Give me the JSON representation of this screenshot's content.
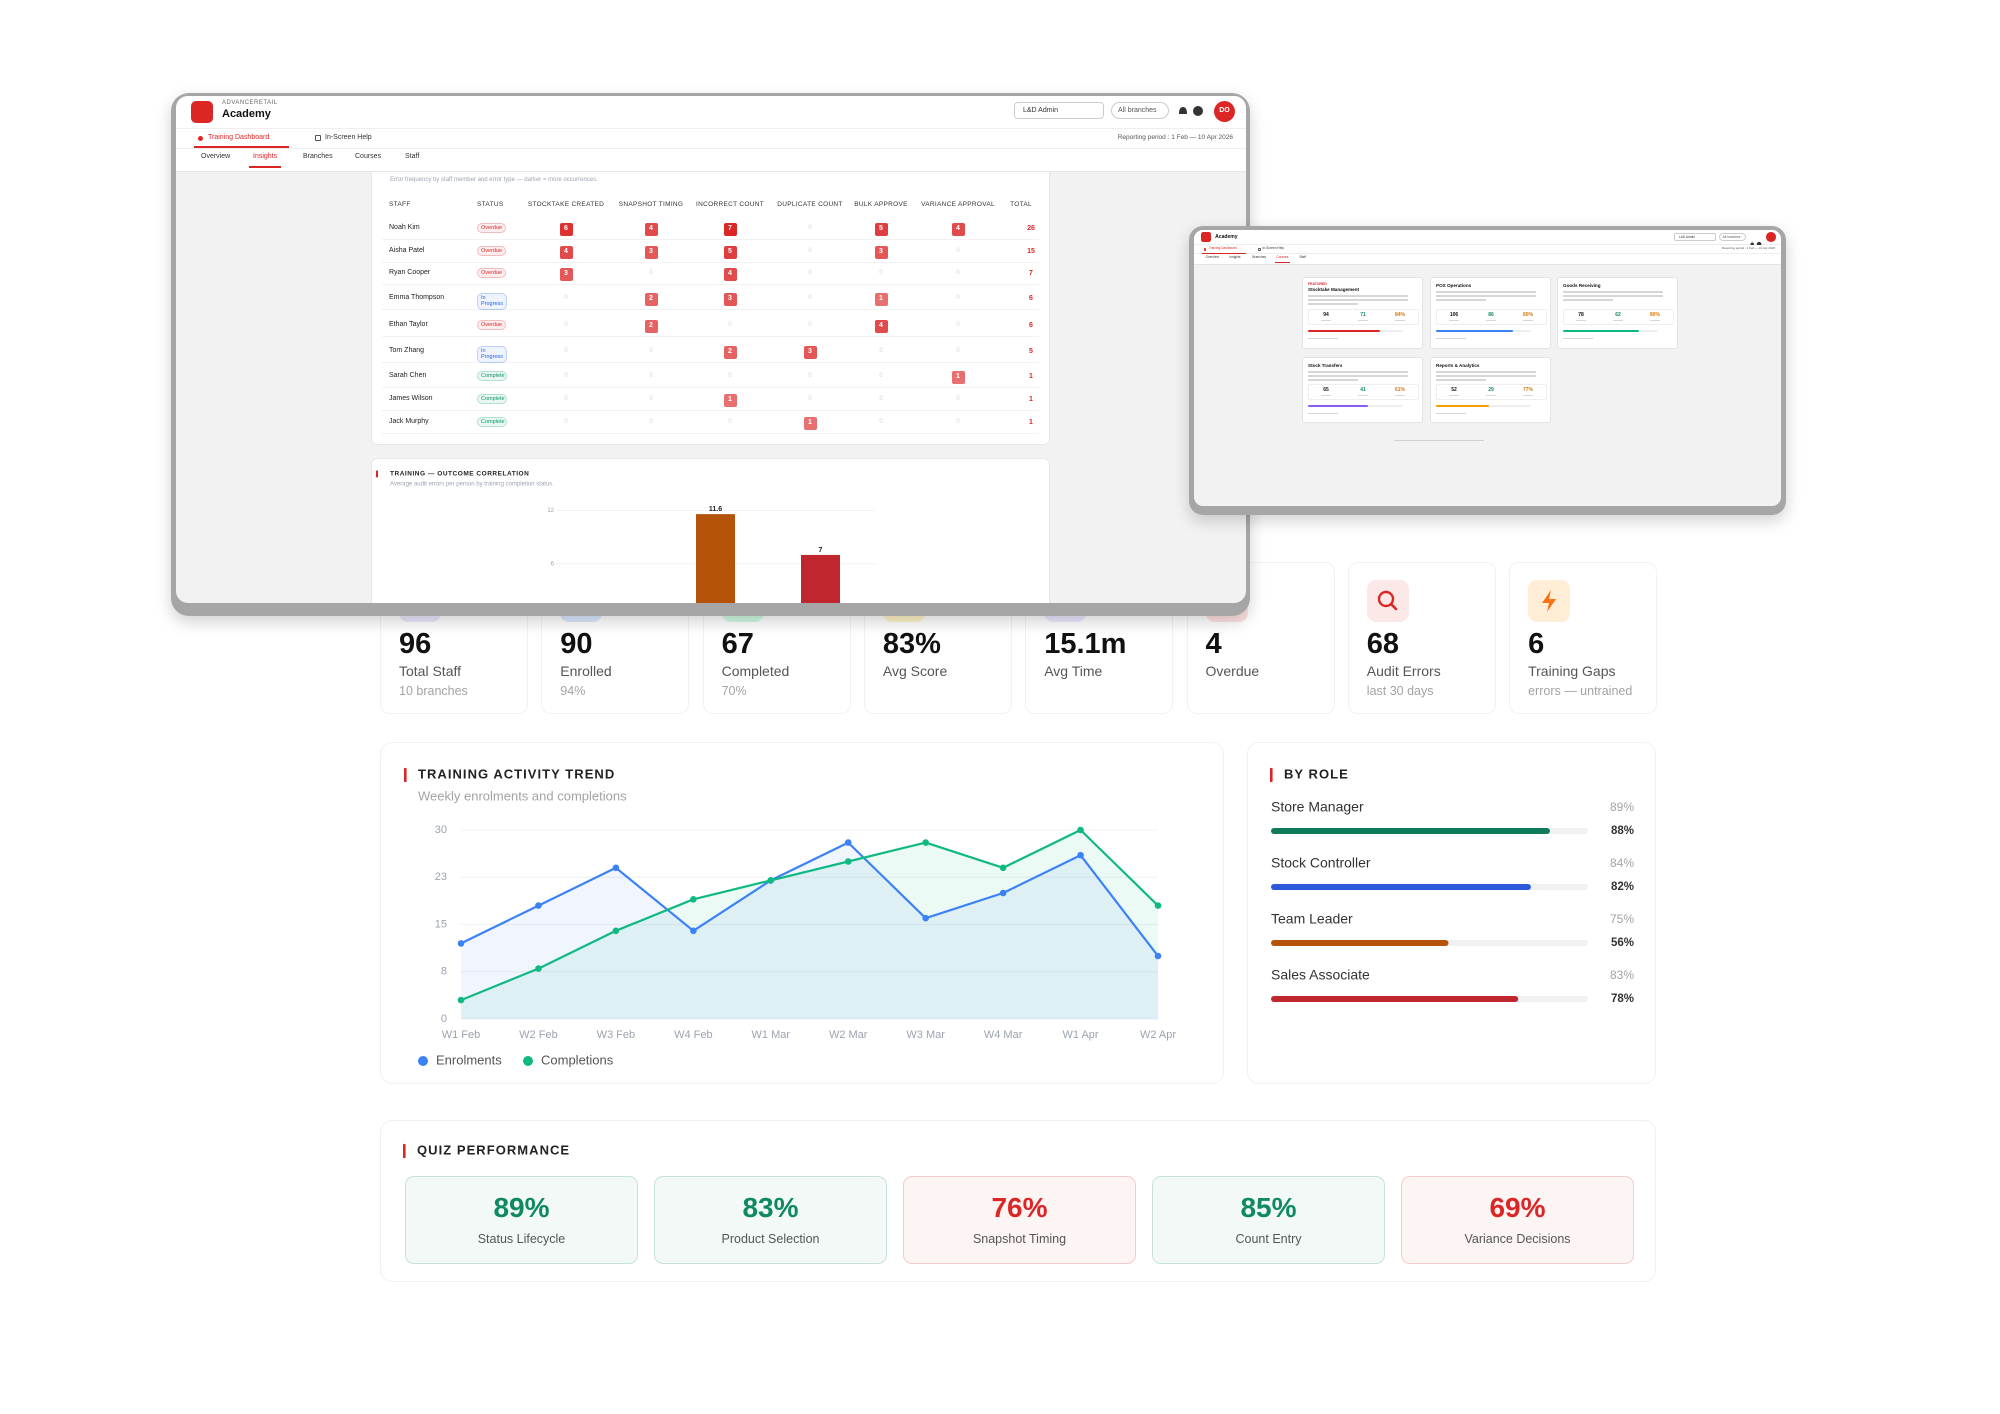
{
  "window1": {
    "brand": "ADVANCERETAIL",
    "app": "Academy",
    "role": "L&D Admin",
    "branch": "All branches",
    "avatar": "DO",
    "tabs": [
      "Training Dashboard",
      "In-Screen Help"
    ],
    "period": "Reporting period : 1 Feb — 10 Apr 2026",
    "subtabs": [
      "Overview",
      "Insights",
      "Branches",
      "Courses",
      "Staff"
    ],
    "active_subtab": 1,
    "heatmap": {
      "subtitle": "Error frequency by staff member and error type — darker = more occurrences.",
      "columns": [
        "STAFF",
        "STATUS",
        "STOCKTAKE CREATED",
        "SNAPSHOT TIMING",
        "INCORRECT COUNT",
        "DUPLICATE COUNT",
        "BULK APPROVE",
        "VARIANCE APPROVAL",
        "TOTAL"
      ],
      "rows": [
        {
          "staff": "Noah Kim",
          "status": "Overdue",
          "status_color": "#dc2626",
          "counts": [
            6,
            4,
            7,
            0,
            5,
            4
          ],
          "total": 26
        },
        {
          "staff": "Aisha Patel",
          "status": "Overdue",
          "status_color": "#dc2626",
          "counts": [
            4,
            3,
            5,
            0,
            3,
            0
          ],
          "total": 15
        },
        {
          "staff": "Ryan Cooper",
          "status": "Overdue",
          "status_color": "#dc2626",
          "counts": [
            3,
            0,
            4,
            0,
            0,
            0
          ],
          "total": 7
        },
        {
          "staff": "Emma Thompson",
          "status": "In Progress",
          "status_color": "#2563eb",
          "counts": [
            0,
            2,
            3,
            0,
            1,
            0
          ],
          "total": 6
        },
        {
          "staff": "Ethan Taylor",
          "status": "Overdue",
          "status_color": "#dc2626",
          "counts": [
            0,
            2,
            0,
            0,
            4,
            0
          ],
          "total": 6
        },
        {
          "staff": "Tom Zhang",
          "status": "In Progress",
          "status_color": "#2563eb",
          "counts": [
            0,
            0,
            2,
            3,
            0,
            0
          ],
          "total": 5
        },
        {
          "staff": "Sarah Chen",
          "status": "Complete",
          "status_color": "#059669",
          "counts": [
            0,
            0,
            0,
            0,
            0,
            1
          ],
          "total": 1
        },
        {
          "staff": "James Wilson",
          "status": "Complete",
          "status_color": "#059669",
          "counts": [
            0,
            0,
            1,
            0,
            0,
            0
          ],
          "total": 1
        },
        {
          "staff": "Jack Murphy",
          "status": "Complete",
          "status_color": "#059669",
          "counts": [
            0,
            0,
            0,
            1,
            0,
            0
          ],
          "total": 1
        }
      ]
    }
  },
  "window2": {
    "app": "Academy",
    "role": "L&D Admin",
    "branch": "All branches",
    "tabs": [
      "Training Dashboard",
      "In-Screen Help"
    ],
    "period": "Reporting period : 1 Feb — 10 Apr 2026",
    "subtabs": [
      "Overview",
      "Insights",
      "Branches",
      "Courses",
      "Staff"
    ],
    "active_subtab": 3,
    "courses": [
      {
        "tag": "FEATURED",
        "title": "Stocktake Management",
        "stats": [
          "94",
          "71",
          "84%"
        ],
        "color": "#dc2626"
      },
      {
        "title": "POS Operations",
        "stats": [
          "106",
          "86",
          "80%"
        ],
        "color": "#3b82f6"
      },
      {
        "title": "Goods Receiving",
        "stats": [
          "78",
          "62",
          "80%"
        ],
        "color": "#10b981"
      },
      {
        "title": "Stock Transfers",
        "stats": [
          "65",
          "41",
          "61%"
        ],
        "color": "#8b5cf6"
      },
      {
        "title": "Reports & Analytics",
        "stats": [
          "52",
          "29",
          "77%"
        ],
        "color": "#f59e0b"
      }
    ]
  },
  "stats": [
    {
      "value": "96",
      "label": "Total Staff",
      "sub": "10 branches"
    },
    {
      "value": "90",
      "label": "Enrolled",
      "sub": "94%"
    },
    {
      "value": "67",
      "label": "Completed",
      "sub": "70%"
    },
    {
      "value": "83%",
      "label": "Avg Score"
    },
    {
      "value": "15.1m",
      "label": "Avg Time"
    },
    {
      "value": "4",
      "label": "Overdue"
    },
    {
      "value": "68",
      "label": "Audit Errors",
      "sub": "last 30 days"
    },
    {
      "value": "6",
      "label": "Training Gaps",
      "sub": "errors — untrained"
    }
  ],
  "chart_data": [
    {
      "type": "line",
      "title": "TRAINING ACTIVITY TREND",
      "subtitle": "Weekly enrolments and completions",
      "categories": [
        "W1 Feb",
        "W2 Feb",
        "W3 Feb",
        "W4 Feb",
        "W1 Mar",
        "W2 Mar",
        "W3 Mar",
        "W4 Mar",
        "W1 Apr",
        "W2 Apr"
      ],
      "series": [
        {
          "name": "Enrolments",
          "color": "#3b82f6",
          "values": [
            12,
            18,
            24,
            14,
            22,
            28,
            16,
            20,
            26,
            10
          ]
        },
        {
          "name": "Completions",
          "color": "#10b981",
          "values": [
            3,
            8,
            14,
            19,
            22,
            25,
            28,
            24,
            30,
            18
          ]
        }
      ],
      "ylim": [
        0,
        30
      ],
      "yticks": [
        0,
        {
          "value": 7.5,
          "label": "8"
        },
        15,
        {
          "value": 22.5,
          "label": "23"
        },
        30
      ],
      "grid": true,
      "area": true,
      "legend": "bottom-left"
    },
    {
      "type": "bar",
      "title": "TRAINING — OUTCOME CORRELATION",
      "subtitle": "Average audit errors per person by training completion status.",
      "categories": [
        null,
        null
      ],
      "values": [
        11.6,
        7
      ],
      "colors": [
        "#b45309",
        "#c0262d"
      ],
      "ylim": [
        0,
        12
      ],
      "yticks": [
        6,
        12
      ],
      "grid": true
    },
    {
      "type": "bar",
      "orientation": "horizontal",
      "title": "BY ROLE",
      "categories": [
        "Store Manager",
        "Stock Controller",
        "Team Leader",
        "Sales Associate"
      ],
      "values": [
        88,
        82,
        56,
        78
      ],
      "value_labels": [
        "88%",
        "82%",
        "56%",
        "78%"
      ],
      "scores": [
        89,
        84,
        75,
        83
      ],
      "score_labels": [
        "89%",
        "84%",
        "75%",
        "83%"
      ],
      "colors": [
        "#0f7b5a",
        "#2b59d9",
        "#b45309",
        "#c0262d"
      ],
      "xlim": [
        0,
        100
      ]
    }
  ],
  "quiz": {
    "title": "QUIZ PERFORMANCE",
    "items": [
      {
        "value": "89%",
        "label": "Status Lifecycle",
        "color": "#0f8a5f"
      },
      {
        "value": "83%",
        "label": "Product Selection",
        "color": "#0f8a5f"
      },
      {
        "value": "76%",
        "label": "Snapshot Timing",
        "color": "#dc2626"
      },
      {
        "value": "85%",
        "label": "Count Entry",
        "color": "#0f8a5f"
      },
      {
        "value": "69%",
        "label": "Variance Decisions",
        "color": "#dc2626"
      }
    ]
  }
}
